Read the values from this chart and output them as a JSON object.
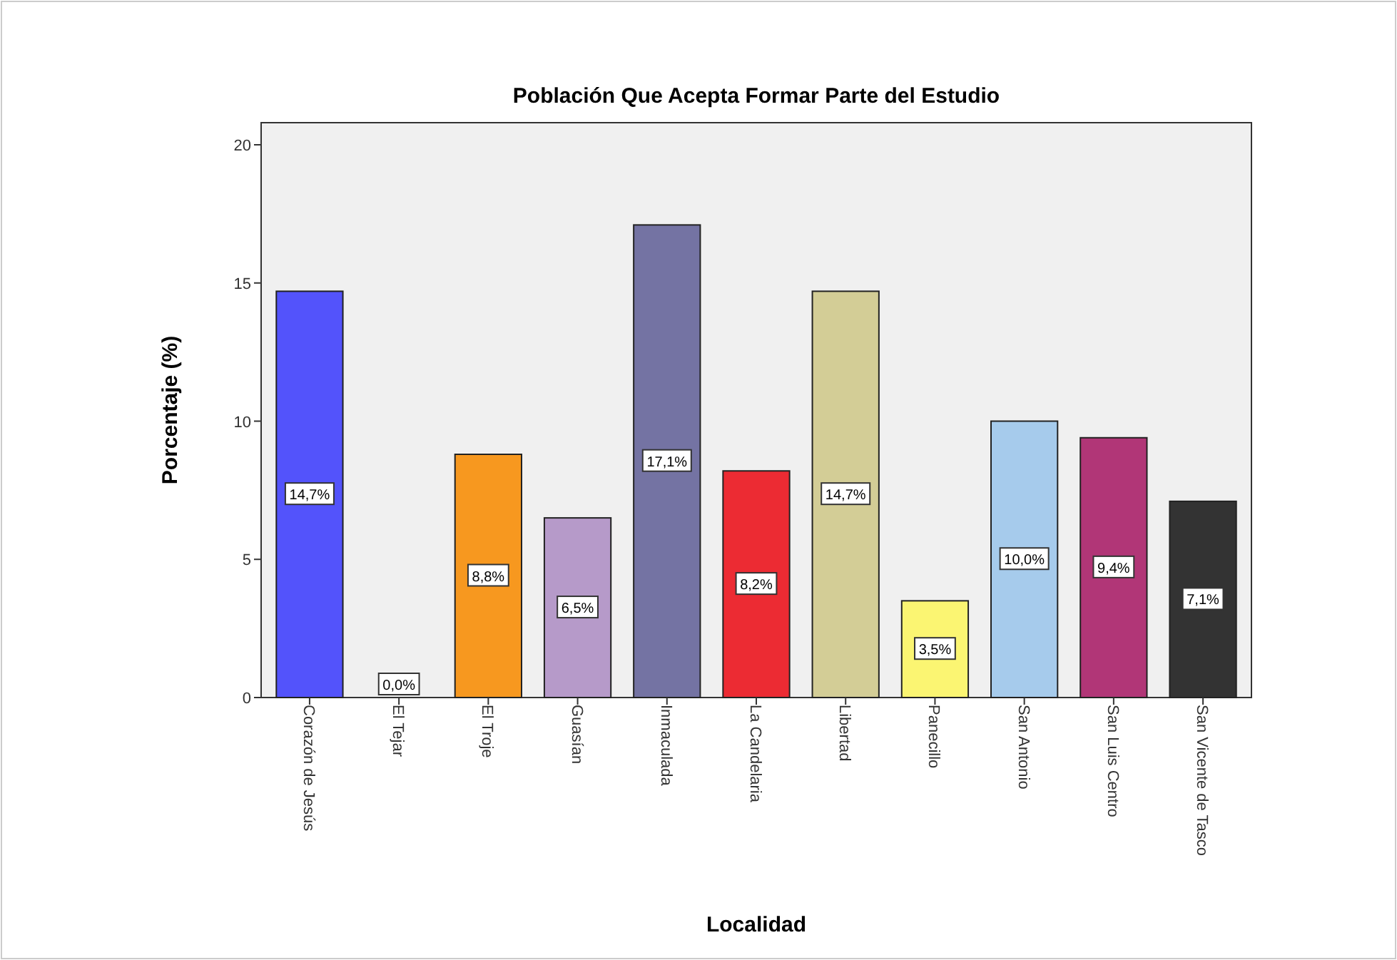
{
  "chart_data": {
    "type": "bar",
    "title": "Población Que Acepta Formar Parte del Estudio",
    "xlabel": "Localidad",
    "ylabel": "Porcentaje (%)",
    "categories": [
      "Corazón de Jesús",
      "El Tejar",
      "El Troje",
      "Guasían",
      "Inmaculada",
      "La Candelaria",
      "Libertad",
      "Panecillo",
      "San Antonio",
      "San Luis Centro",
      "San Vicente de Tasco"
    ],
    "values": [
      14.7,
      0.0,
      8.8,
      6.5,
      17.1,
      8.2,
      14.7,
      3.5,
      10.0,
      9.4,
      7.1
    ],
    "colors": [
      "#5353fb",
      "#e8e8e8",
      "#f7981f",
      "#b69ac9",
      "#7473a3",
      "#ec2b33",
      "#d3cd96",
      "#fbf572",
      "#a6cbec",
      "#b13677",
      "#333333"
    ],
    "value_labels": [
      "14,7%",
      "0,0%",
      "8,8%",
      "6,5%",
      "17,1%",
      "8,2%",
      "14,7%",
      "3,5%",
      "10,0%",
      "9,4%",
      "7,1%"
    ],
    "ylim": [
      0,
      20.8
    ],
    "yticks": [
      0,
      5,
      10,
      15,
      20
    ],
    "grid": false
  }
}
